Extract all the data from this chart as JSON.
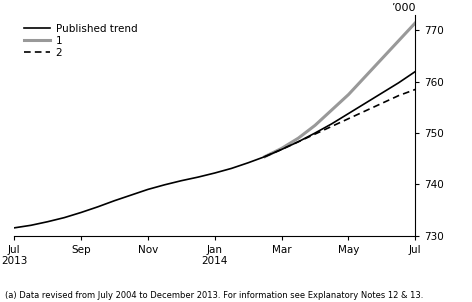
{
  "ylabel": "’000",
  "ylim": [
    730,
    773
  ],
  "yticks": [
    730,
    740,
    750,
    760,
    770
  ],
  "ytick_labels": [
    "730",
    "740",
    "750",
    "760",
    "770"
  ],
  "footnote": "(a) Data revised from July 2004 to December 2013. For information see Explanatory Notes 12 & 13.",
  "legend_entries": [
    "Published trend",
    "1",
    "2"
  ],
  "published_trend": {
    "x": [
      0,
      0.5,
      1,
      1.5,
      2,
      2.5,
      3,
      3.5,
      4,
      4.5,
      5,
      5.5,
      6,
      6.5,
      7,
      7.5,
      8,
      8.5,
      9,
      9.5,
      10,
      10.5,
      11,
      11.5,
      12
    ],
    "y": [
      731.5,
      732.0,
      732.7,
      733.5,
      734.5,
      735.6,
      736.8,
      737.9,
      739.0,
      739.9,
      740.7,
      741.4,
      742.2,
      743.1,
      744.2,
      745.4,
      746.8,
      748.3,
      750.0,
      751.8,
      753.8,
      755.8,
      757.8,
      759.8,
      762.0
    ],
    "color": "#000000",
    "linewidth": 1.2,
    "linestyle": "solid"
  },
  "scenario1": {
    "x": [
      7.5,
      8,
      8.5,
      9,
      9.5,
      10,
      10.5,
      11,
      11.5,
      12
    ],
    "y": [
      745.4,
      747.0,
      749.0,
      751.5,
      754.5,
      757.5,
      761.0,
      764.5,
      768.0,
      771.5
    ],
    "color": "#999999",
    "linewidth": 2.2,
    "linestyle": "solid"
  },
  "scenario2": {
    "x": [
      7.5,
      8,
      8.5,
      9,
      9.5,
      10,
      10.5,
      11,
      11.5,
      12
    ],
    "y": [
      745.4,
      746.8,
      748.3,
      749.8,
      751.3,
      752.8,
      754.3,
      755.8,
      757.3,
      758.5
    ],
    "color": "#000000",
    "linewidth": 1.2,
    "linestyle": "dashed"
  },
  "xtick_positions": [
    0,
    2,
    4,
    6,
    8,
    10,
    12
  ],
  "xtick_labels_line1": [
    "Jul",
    "Sep",
    "Nov",
    "Jan",
    "Mar",
    "May",
    "Jul"
  ],
  "xtick_labels_line2": [
    "2013",
    "",
    "",
    "2014",
    "",
    "",
    ""
  ],
  "background_color": "#ffffff"
}
